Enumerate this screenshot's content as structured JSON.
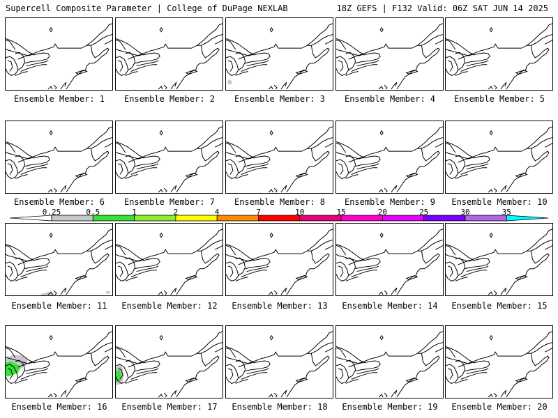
{
  "header": {
    "left": "Supercell Composite Parameter | College of DuPage NEXLAB",
    "right": "18Z GEFS | F132 Valid: 06Z SAT JUN 14 2025"
  },
  "colorbar": {
    "labels": [
      "0.25",
      "0.5",
      "1",
      "2",
      "4",
      "7",
      "10",
      "15",
      "20",
      "25",
      "30",
      "35"
    ],
    "colors": [
      "#c8c8c8",
      "#36e236",
      "#8ef02c",
      "#ffff00",
      "#ff8c00",
      "#ff0000",
      "#e6007a",
      "#ff00c8",
      "#e600ff",
      "#7800ff",
      "#b464e6",
      "#00ffff"
    ]
  },
  "members": [
    {
      "label": "Ensemble Member: 1",
      "shade": null
    },
    {
      "label": "Ensemble Member: 2",
      "shade": null
    },
    {
      "label": "Ensemble Member: 3",
      "shade": "gray-small"
    },
    {
      "label": "Ensemble Member: 4",
      "shade": null
    },
    {
      "label": "Ensemble Member: 5",
      "shade": null
    },
    {
      "label": "Ensemble Member: 6",
      "shade": null
    },
    {
      "label": "Ensemble Member: 7",
      "shade": null
    },
    {
      "label": "Ensemble Member: 8",
      "shade": null
    },
    {
      "label": "Ensemble Member: 9",
      "shade": null
    },
    {
      "label": "Ensemble Member: 10",
      "shade": null
    },
    {
      "label": "Ensemble Member: 11",
      "shade": "gray-bottom"
    },
    {
      "label": "Ensemble Member: 12",
      "shade": null
    },
    {
      "label": "Ensemble Member: 13",
      "shade": null
    },
    {
      "label": "Ensemble Member: 14",
      "shade": null
    },
    {
      "label": "Ensemble Member: 15",
      "shade": null
    },
    {
      "label": "Ensemble Member: 16",
      "shade": "green-large"
    },
    {
      "label": "Ensemble Member: 17",
      "shade": "green-small"
    },
    {
      "label": "Ensemble Member: 18",
      "shade": null
    },
    {
      "label": "Ensemble Member: 19",
      "shade": null
    },
    {
      "label": "Ensemble Member: 20",
      "shade": null
    }
  ]
}
